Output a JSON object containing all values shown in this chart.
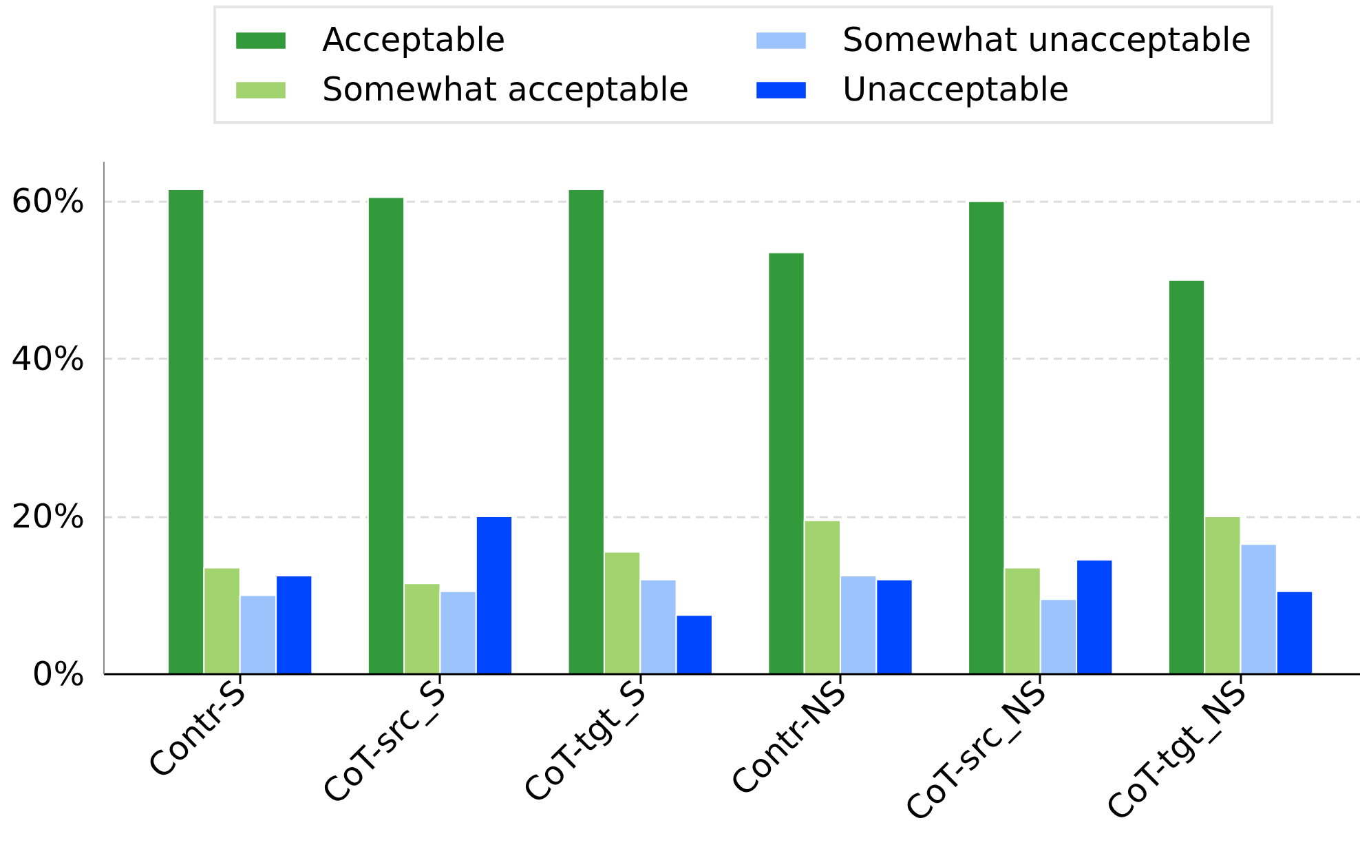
{
  "chart_data": {
    "type": "bar",
    "categories": [
      "Contr-S",
      "CoT-src_S",
      "CoT-tgt_S",
      "Contr-NS",
      "CoT-src_NS",
      "CoT-tgt_NS"
    ],
    "series": [
      {
        "name": "Acceptable",
        "color": "#339a3b",
        "values": [
          61.5,
          60.5,
          61.5,
          53.5,
          60,
          50
        ]
      },
      {
        "name": "Somewhat acceptable",
        "color": "#a1d46e",
        "values": [
          13.5,
          11.5,
          15.5,
          19.5,
          13.5,
          20
        ]
      },
      {
        "name": "Somewhat unacceptable",
        "color": "#9dc3fd",
        "values": [
          10,
          10.5,
          12,
          12.5,
          9.5,
          16.5
        ]
      },
      {
        "name": "Unacceptable",
        "color": "#0045ff",
        "values": [
          12.5,
          20,
          7.5,
          12,
          14.5,
          10.5
        ]
      }
    ],
    "ylim": [
      0,
      65
    ],
    "yticks": [
      {
        "value": 0,
        "label": "0%"
      },
      {
        "value": 20,
        "label": "20%"
      },
      {
        "value": 40,
        "label": "40%"
      },
      {
        "value": 60,
        "label": "60%"
      }
    ],
    "grid": "y",
    "legend": "top"
  }
}
